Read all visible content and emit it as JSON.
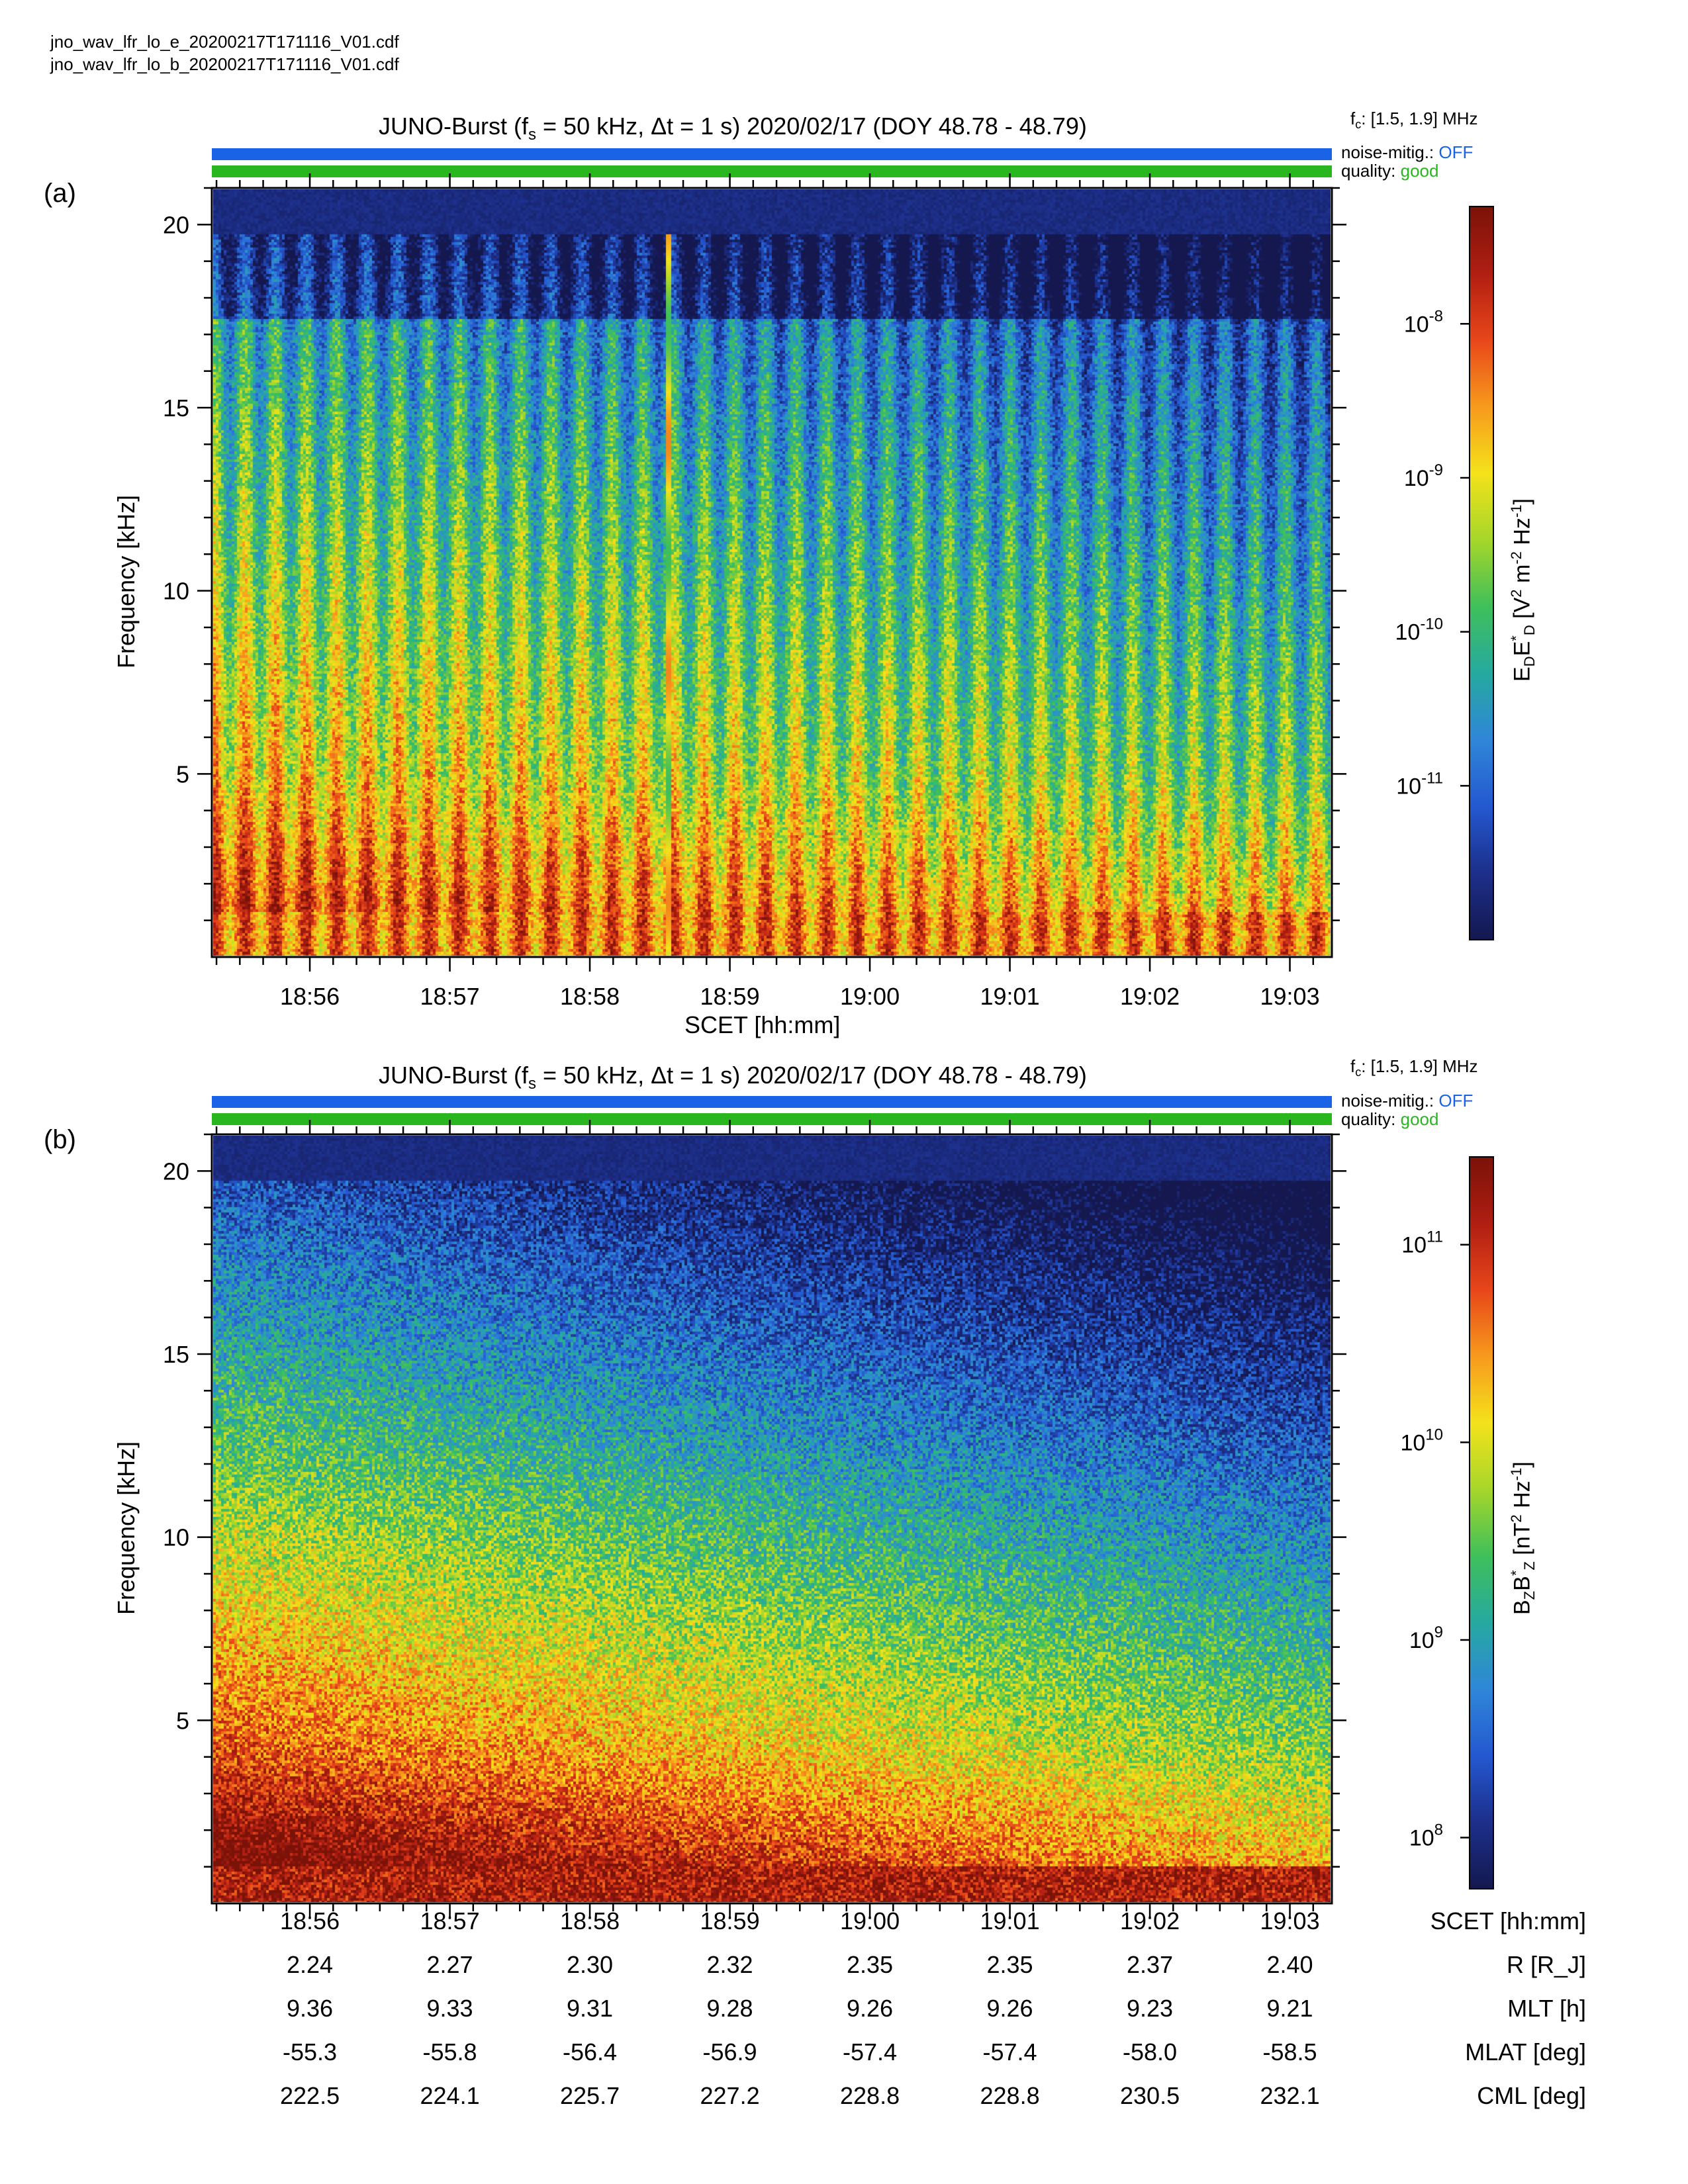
{
  "files": [
    "jno_wav_lfr_lo_e_20200217T171116_V01.cdf",
    "jno_wav_lfr_lo_b_20200217T171116_V01.cdf"
  ],
  "colors": {
    "noise_bar": "#1a63e6",
    "quality_bar": "#29b61f",
    "colormap": [
      "#14184f",
      "#1c2f8a",
      "#2458d0",
      "#2f86d8",
      "#26a9a0",
      "#3fbf5a",
      "#a6d62a",
      "#f4e21b",
      "#f79a1c",
      "#e8461a",
      "#b01e12",
      "#7a1208"
    ]
  },
  "panels": [
    {
      "tag": "(a)",
      "title_pre": "JUNO-Burst (f",
      "title_sub": "s",
      "title_post": " = 50 kHz, Δt = 1 s)  2020/02/17 (DOY 48.78 - 48.79)",
      "fc_pre": "f",
      "fc_sub": "c",
      "fc_post": ": [1.5, 1.9] MHz",
      "noise_label": "noise-mitig.:",
      "noise_value": "OFF",
      "quality_label": "quality:",
      "quality_value": "good",
      "ylabel": "Frequency [kHz]",
      "xlabel": "SCET [hh:mm]",
      "cbar_label": "E",
      "cbar_ticks": [
        "10^-8",
        "10^-9",
        "10^-10",
        "10^-11"
      ],
      "cbar_exponents": [
        "-8",
        "-9",
        "-10",
        "-11"
      ]
    },
    {
      "tag": "(b)",
      "title_pre": "JUNO-Burst (f",
      "title_sub": "s",
      "title_post": " = 50 kHz, Δt = 1 s)  2020/02/17 (DOY 48.78 - 48.79)",
      "fc_pre": "f",
      "fc_sub": "c",
      "fc_post": ": [1.5, 1.9] MHz",
      "noise_label": "noise-mitig.:",
      "noise_value": "OFF",
      "quality_label": "quality:",
      "quality_value": "good",
      "ylabel": "Frequency [kHz]",
      "cbar_ticks": [
        "10^11",
        "10^10",
        "10^9",
        "10^8"
      ],
      "cbar_exponents": [
        "11",
        "10",
        "9",
        "8"
      ]
    }
  ],
  "chart_data": [
    {
      "type": "heatmap",
      "title": "JUNO-Burst (fs = 50 kHz, Δt = 1 s)  2020/02/17 (DOY 48.78 - 48.79)",
      "xlabel": "SCET [hh:mm]",
      "ylabel": "Frequency [kHz]",
      "x_ticks": [
        "18:56",
        "18:57",
        "18:58",
        "18:59",
        "19:00",
        "19:01",
        "19:02",
        "19:03"
      ],
      "y_ticks": [
        5,
        10,
        15,
        20
      ],
      "ylim": [
        0,
        21
      ],
      "colorbar": {
        "label": "EDED* [V² m⁻² Hz⁻¹]",
        "scale": "log",
        "ticks": [
          "10^-11",
          "10^-10",
          "10^-9",
          "10^-8"
        ]
      },
      "features": {
        "vertical_spike_time": "18:58.5",
        "periodic_pulses": true
      }
    },
    {
      "type": "heatmap",
      "title": "JUNO-Burst (fs = 50 kHz, Δt = 1 s)  2020/02/17 (DOY 48.78 - 48.79)",
      "ylabel": "Frequency [kHz]",
      "x_ticks": [
        "18:56",
        "18:57",
        "18:58",
        "18:59",
        "19:00",
        "19:01",
        "19:02",
        "19:03"
      ],
      "y_ticks": [
        5,
        10,
        15,
        20
      ],
      "ylim": [
        0,
        21
      ],
      "colorbar": {
        "label": "BZBZ* [nT² Hz⁻¹]",
        "scale": "log",
        "ticks": [
          "10^8",
          "10^9",
          "10^10",
          "10^11"
        ]
      }
    }
  ],
  "ephemeris": {
    "rows": [
      {
        "label": "SCET [hh:mm]",
        "values": [
          "18:56",
          "18:57",
          "18:58",
          "18:59",
          "19:00",
          "19:01",
          "19:02",
          "19:03"
        ]
      },
      {
        "label": "R [R_J]",
        "values": [
          "2.24",
          "2.27",
          "2.30",
          "2.32",
          "2.35",
          "2.35",
          "2.37",
          "2.40"
        ]
      },
      {
        "label": "MLT [h]",
        "values": [
          "9.36",
          "9.33",
          "9.31",
          "9.28",
          "9.26",
          "9.26",
          "9.23",
          "9.21"
        ]
      },
      {
        "label": "MLAT [deg]",
        "values": [
          "-55.3",
          "-55.8",
          "-56.4",
          "-56.9",
          "-57.4",
          "-57.4",
          "-58.0",
          "-58.5"
        ]
      },
      {
        "label": "CML [deg]",
        "values": [
          "222.5",
          "224.1",
          "225.7",
          "227.2",
          "228.8",
          "228.8",
          "230.5",
          "232.1"
        ]
      }
    ]
  }
}
